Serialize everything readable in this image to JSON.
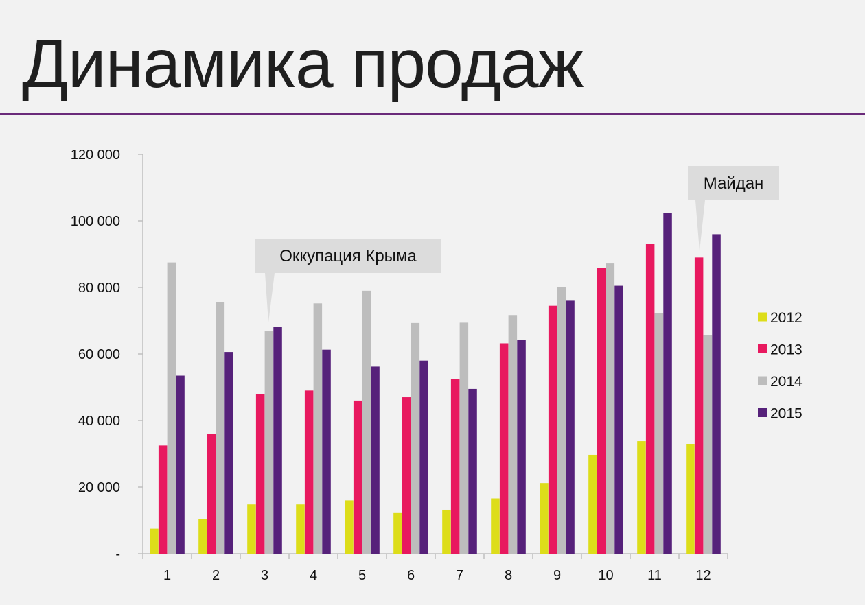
{
  "page": {
    "title": "Динамика продаж"
  },
  "colors": {
    "2012": "#dddd1a",
    "2013": "#e8195f",
    "2014": "#bdbdbd",
    "2015": "#56217a",
    "rule": "#6a2a7a",
    "callout_bg": "#dcdcdc"
  },
  "chart_data": {
    "type": "bar",
    "title": "Динамика продаж",
    "xlabel": "",
    "ylabel": "",
    "ylim": [
      0,
      120000
    ],
    "y_ticks": [
      0,
      20000,
      40000,
      60000,
      80000,
      100000,
      120000
    ],
    "y_tick_labels": [
      "-",
      "20 000",
      "40 000",
      "60 000",
      "80 000",
      "100 000",
      "120 000"
    ],
    "grid": false,
    "legend": "right",
    "categories": [
      "1",
      "2",
      "3",
      "4",
      "5",
      "6",
      "7",
      "8",
      "9",
      "10",
      "11",
      "12"
    ],
    "series": [
      {
        "name": "2012",
        "values": [
          7500,
          10500,
          14800,
          14800,
          16000,
          12200,
          13200,
          16600,
          21200,
          29700,
          33800,
          32800
        ]
      },
      {
        "name": "2013",
        "values": [
          32500,
          36000,
          48000,
          49000,
          46000,
          47000,
          52500,
          63200,
          74500,
          85800,
          93000,
          89000
        ]
      },
      {
        "name": "2014",
        "values": [
          87500,
          75500,
          66800,
          75200,
          79000,
          69300,
          69400,
          71700,
          80200,
          87200,
          72300,
          65700
        ]
      },
      {
        "name": "2015",
        "values": [
          53500,
          60600,
          68200,
          61300,
          56200,
          58000,
          49500,
          64300,
          76000,
          80500,
          102400,
          96000
        ]
      }
    ],
    "annotations": [
      {
        "text": "Оккупация Крыма",
        "category": "3"
      },
      {
        "text": "Майдан",
        "category": "12"
      }
    ]
  }
}
